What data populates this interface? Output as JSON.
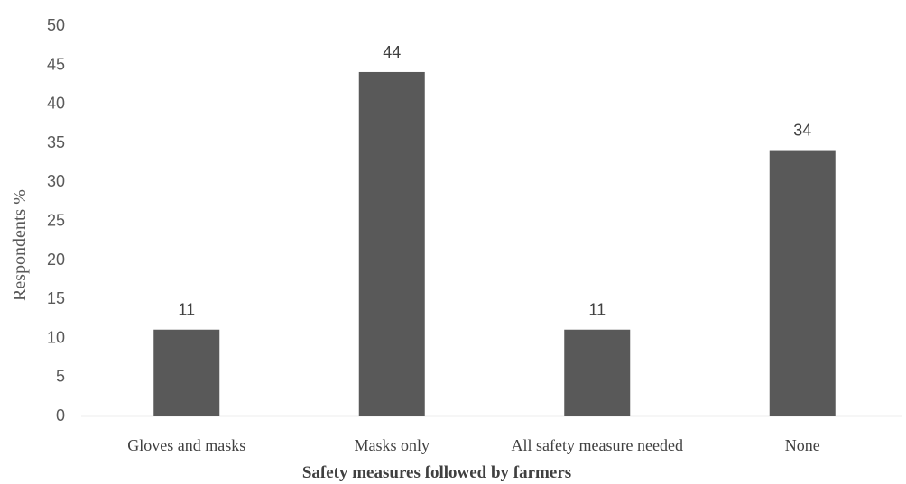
{
  "chart_data": {
    "type": "bar",
    "categories": [
      "Gloves and masks",
      "Masks only",
      "All safety measure needed",
      "None"
    ],
    "values": [
      11,
      44,
      11,
      34
    ],
    "data_labels": [
      "11",
      "44",
      "11",
      "34"
    ],
    "y_ticks": [
      "0",
      "5",
      "10",
      "15",
      "20",
      "25",
      "30",
      "35",
      "40",
      "45",
      "50"
    ],
    "xlabel": "Safety measures followed by farmers",
    "ylabel": "Respondents %",
    "ylim": [
      0,
      50
    ],
    "grid": false,
    "legend": "none",
    "bar_color": "#595959",
    "axis_color": "#d9d9d9"
  }
}
